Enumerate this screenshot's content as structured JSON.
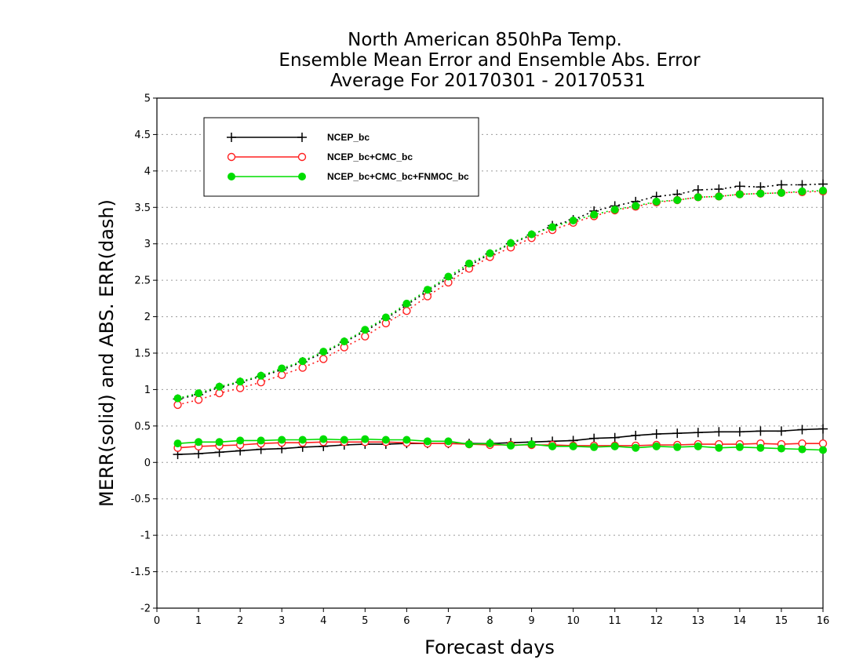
{
  "chart_data": {
    "type": "line",
    "title": [
      "North American 850hPa Temp.",
      "Ensemble Mean Error and Ensemble Abs. Error",
      "Average For 20170301 - 20170531"
    ],
    "xlabel": "Forecast days",
    "ylabel": "MERR(solid) and ABS. ERR(dash)",
    "xlim": [
      0,
      16
    ],
    "ylim": [
      -2,
      5
    ],
    "xticks": [
      0,
      1,
      2,
      3,
      4,
      5,
      6,
      7,
      8,
      9,
      10,
      11,
      12,
      13,
      14,
      15,
      16
    ],
    "yticks": [
      -2,
      -1.5,
      -1,
      -0.5,
      0,
      0.5,
      1,
      1.5,
      2,
      2.5,
      3,
      3.5,
      4,
      4.5,
      5
    ],
    "ytick_labels": [
      "-2",
      "-1.5",
      "-1",
      "-0.5",
      "0",
      "0.5",
      "1",
      "1.5",
      "2",
      "2.5",
      "3",
      "3.5",
      "4",
      "4.5",
      "5"
    ],
    "grid": "horizontal dotted",
    "legend_position": "top-left",
    "x": [
      0.5,
      1,
      1.5,
      2,
      2.5,
      3,
      3.5,
      4,
      4.5,
      5,
      5.5,
      6,
      6.5,
      7,
      7.5,
      8,
      8.5,
      9,
      9.5,
      10,
      10.5,
      11,
      11.5,
      12,
      12.5,
      13,
      13.5,
      14,
      14.5,
      15,
      15.5,
      16
    ],
    "series": [
      {
        "name": "NCEP_bc",
        "color": "#000000",
        "marker": "plus",
        "merr": [
          0.11,
          0.12,
          0.14,
          0.16,
          0.18,
          0.19,
          0.21,
          0.22,
          0.24,
          0.25,
          0.25,
          0.26,
          0.26,
          0.26,
          0.26,
          0.26,
          0.27,
          0.28,
          0.29,
          0.3,
          0.33,
          0.34,
          0.37,
          0.39,
          0.4,
          0.41,
          0.42,
          0.42,
          0.43,
          0.43,
          0.45,
          0.46
        ],
        "abs_err": [
          0.87,
          0.93,
          1.03,
          1.1,
          1.18,
          1.27,
          1.38,
          1.5,
          1.65,
          1.8,
          1.97,
          2.16,
          2.35,
          2.53,
          2.7,
          2.86,
          3.0,
          3.12,
          3.25,
          3.33,
          3.45,
          3.52,
          3.58,
          3.65,
          3.68,
          3.74,
          3.75,
          3.79,
          3.78,
          3.81,
          3.81,
          3.82
        ]
      },
      {
        "name": "NCEP_bc+CMC_bc",
        "color": "#ff2020",
        "marker": "open-circle",
        "merr": [
          0.2,
          0.22,
          0.23,
          0.24,
          0.26,
          0.27,
          0.27,
          0.28,
          0.28,
          0.28,
          0.28,
          0.27,
          0.26,
          0.26,
          0.25,
          0.24,
          0.24,
          0.24,
          0.24,
          0.23,
          0.23,
          0.23,
          0.23,
          0.24,
          0.24,
          0.25,
          0.25,
          0.25,
          0.26,
          0.25,
          0.26,
          0.26
        ],
        "abs_err": [
          0.79,
          0.86,
          0.95,
          1.02,
          1.1,
          1.2,
          1.3,
          1.42,
          1.58,
          1.73,
          1.91,
          2.08,
          2.28,
          2.47,
          2.66,
          2.82,
          2.95,
          3.08,
          3.19,
          3.29,
          3.38,
          3.46,
          3.51,
          3.57,
          3.6,
          3.64,
          3.65,
          3.68,
          3.69,
          3.7,
          3.71,
          3.72
        ]
      },
      {
        "name": "NCEP_bc+CMC_bc+FNMOC_bc",
        "color": "#00dd00",
        "marker": "filled-circle",
        "merr": [
          0.26,
          0.28,
          0.28,
          0.3,
          0.3,
          0.31,
          0.31,
          0.32,
          0.31,
          0.32,
          0.31,
          0.31,
          0.29,
          0.29,
          0.25,
          0.26,
          0.23,
          0.25,
          0.22,
          0.22,
          0.21,
          0.22,
          0.2,
          0.22,
          0.21,
          0.22,
          0.2,
          0.21,
          0.2,
          0.19,
          0.18,
          0.17
        ],
        "abs_err": [
          0.88,
          0.95,
          1.04,
          1.11,
          1.19,
          1.29,
          1.39,
          1.52,
          1.66,
          1.82,
          1.99,
          2.18,
          2.37,
          2.55,
          2.73,
          2.87,
          3.01,
          3.13,
          3.23,
          3.32,
          3.4,
          3.47,
          3.52,
          3.58,
          3.6,
          3.64,
          3.65,
          3.68,
          3.69,
          3.7,
          3.72,
          3.73
        ]
      }
    ]
  }
}
